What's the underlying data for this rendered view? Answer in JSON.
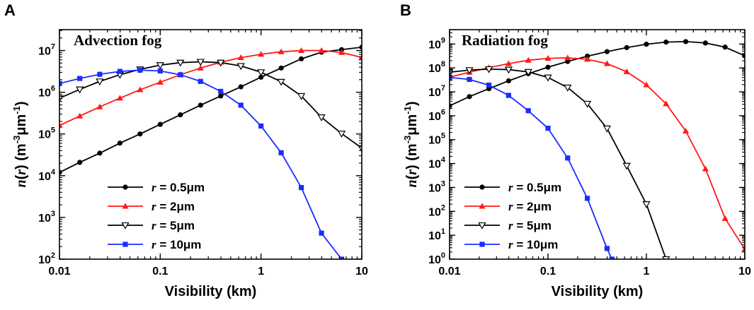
{
  "colors": {
    "black": "#000000",
    "red": "#ff1a1a",
    "blue": "#1a2cff"
  },
  "chart_data": [
    {
      "panel": "A",
      "title": "Advection fog",
      "type": "line",
      "xlabel": "Visibility (km)",
      "ylabel": "n(r) (m-3μm-1)",
      "xscale": "log",
      "yscale": "log",
      "xlim": [
        0.01,
        10
      ],
      "ylim_exp": [
        2,
        7.5
      ],
      "xticks": [
        {
          "v": 0.01,
          "label": "0.01"
        },
        {
          "v": 0.1,
          "label": "0.1"
        },
        {
          "v": 1,
          "label": "1"
        },
        {
          "v": 10,
          "label": "10"
        }
      ],
      "yticks_exp": [
        2,
        3,
        4,
        5,
        6,
        7
      ],
      "legend_position": "bottom-left",
      "series": [
        {
          "name": "r = 0.5μm",
          "r_label": "r",
          "value_label": " = 0.5μm",
          "color": "#000000",
          "marker": "circle",
          "x": [
            0.01,
            0.0159,
            0.0251,
            0.0398,
            0.0631,
            0.1,
            0.1585,
            0.2512,
            0.3981,
            0.631,
            1,
            1.585,
            2.512,
            3.981,
            6.31,
            10
          ],
          "y": [
            12000.0,
            20900.0,
            34700.0,
            60300.0,
            100000.0,
            170000.0,
            288000.0,
            490000.0,
            813000.0,
            1350000.0,
            2290000.0,
            3800000.0,
            6310000.0,
            9120000.0,
            10500000.0,
            12000000.0
          ]
        },
        {
          "name": "r = 2μm",
          "r_label": "r",
          "value_label": " = 2μm",
          "color": "#ff1a1a",
          "marker": "triangle-up",
          "x": [
            0.01,
            0.0159,
            0.0251,
            0.0398,
            0.0631,
            0.1,
            0.1585,
            0.2512,
            0.3981,
            0.631,
            1,
            1.585,
            2.512,
            3.981,
            6.31,
            10
          ],
          "y": [
            160000.0,
            269000.0,
            447000.0,
            724000.0,
            1150000.0,
            1740000.0,
            2630000.0,
            3800000.0,
            5250000.0,
            6760000.0,
            8130000.0,
            9330000.0,
            10000000.0,
            10000000.0,
            9000000.0,
            6800000.0
          ]
        },
        {
          "name": "r = 5μm",
          "r_label": "r",
          "value_label": " = 5μm",
          "color": "#000000",
          "marker": "triangle-down-open",
          "x": [
            0.01,
            0.0159,
            0.0251,
            0.0398,
            0.0631,
            0.1,
            0.1585,
            0.2512,
            0.3981,
            0.631,
            1,
            1.585,
            2.512,
            3.981,
            6.31,
            10
          ],
          "y": [
            720000.0,
            1170000.0,
            1820000.0,
            2630000.0,
            3550000.0,
            4470000.0,
            5130000.0,
            5370000.0,
            5130000.0,
            4270000.0,
            3020000.0,
            1780000.0,
            813000.0,
            251000.0,
            102000.0,
            46000.0
          ]
        },
        {
          "name": "r = 10μm",
          "r_label": "r",
          "value_label": " = 10μm",
          "color": "#1a2cff",
          "marker": "square",
          "x": [
            0.01,
            0.0159,
            0.0251,
            0.0398,
            0.0631,
            0.1,
            0.1585,
            0.2512,
            0.3981,
            0.631,
            1,
            1.585,
            2.512,
            3.981,
            6.31
          ],
          "y": [
            1620000.0,
            2140000.0,
            2690000.0,
            3160000.0,
            3390000.0,
            3240000.0,
            2630000.0,
            1820000.0,
            1050000.0,
            490000.0,
            155000.0,
            35500.0,
            5200.0,
            420.0,
            100.0
          ]
        }
      ]
    },
    {
      "panel": "B",
      "title": "Radiation fog",
      "type": "line",
      "xlabel": "Visibility (km)",
      "ylabel": "n(r) (m-3μm-1)",
      "xscale": "log",
      "yscale": "log",
      "xlim": [
        0.01,
        10
      ],
      "ylim_exp": [
        0,
        9.6
      ],
      "xticks": [
        {
          "v": 0.01,
          "label": "0.01"
        },
        {
          "v": 0.1,
          "label": "0.1"
        },
        {
          "v": 1,
          "label": "1"
        },
        {
          "v": 10,
          "label": "10"
        }
      ],
      "yticks_exp": [
        0,
        1,
        2,
        3,
        4,
        5,
        6,
        7,
        8,
        9
      ],
      "legend_position": "bottom-left",
      "series": [
        {
          "name": "r = 0.5μm",
          "r_label": "r",
          "value_label": " = 0.5μm",
          "color": "#000000",
          "marker": "circle",
          "x": [
            0.01,
            0.0159,
            0.0251,
            0.0398,
            0.0631,
            0.1,
            0.1585,
            0.2512,
            0.3981,
            0.631,
            1,
            1.585,
            2.512,
            3.981,
            6.31,
            10
          ],
          "y": [
            2600000.0,
            6300000.0,
            13500000.0,
            28800000.0,
            57500000.0,
            107000000.0,
            186000000.0,
            309000000.0,
            479000000.0,
            708000000.0,
            977000000.0,
            1200000000.0,
            1260000000.0,
            1100000000.0,
            740000000.0,
            320000000.0
          ]
        },
        {
          "name": "r = 2μm",
          "r_label": "r",
          "value_label": " = 2μm",
          "color": "#ff1a1a",
          "marker": "triangle-up",
          "x": [
            0.01,
            0.0159,
            0.0251,
            0.0398,
            0.0631,
            0.1,
            0.1585,
            0.2512,
            0.3981,
            0.631,
            1,
            1.585,
            2.512,
            3.981,
            6.31,
            10
          ],
          "y": [
            41000000.0,
            66000000.0,
            102000000.0,
            151000000.0,
            209000000.0,
            251000000.0,
            263000000.0,
            229000000.0,
            151000000.0,
            69200000.0,
            19500000.0,
            3160000.0,
            229000.0,
            6000.0,
            50.0,
            2.6
          ]
        },
        {
          "name": "r = 5μm",
          "r_label": "r",
          "value_label": " = 5μm",
          "color": "#000000",
          "marker": "triangle-down-open",
          "x": [
            0.01,
            0.0159,
            0.0251,
            0.0398,
            0.0631,
            0.1,
            0.1585,
            0.2512,
            0.3981,
            0.631,
            1,
            1.585
          ],
          "y": [
            66000000.0,
            81000000.0,
            89000000.0,
            85000000.0,
            68000000.0,
            39800000.0,
            15100000.0,
            3160000.0,
            295000.0,
            8100.0,
            200.0,
            1.0
          ]
        },
        {
          "name": "r = 10μm",
          "r_label": "r",
          "value_label": " = 10μm",
          "color": "#1a2cff",
          "marker": "square",
          "x": [
            0.01,
            0.0159,
            0.0251,
            0.0398,
            0.0631,
            0.1,
            0.1585,
            0.2512,
            0.3981,
            0.4467
          ],
          "y": [
            40000000.0,
            33000000.0,
            19000000.0,
            7100000.0,
            1620000.0,
            300000.0,
            17000.0,
            350.0,
            2.8,
            1.0
          ]
        }
      ]
    }
  ]
}
